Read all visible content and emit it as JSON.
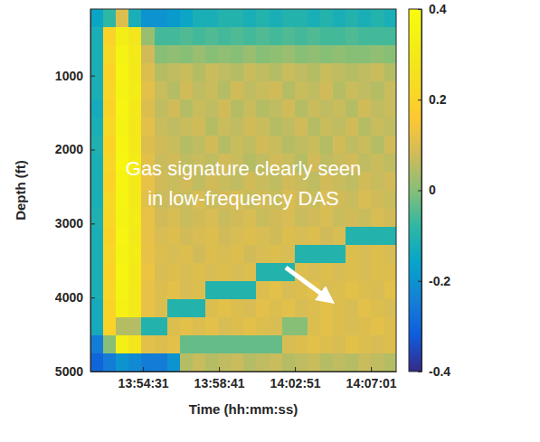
{
  "chart_data": {
    "type": "heatmap",
    "xlabel": "Time (hh:mm:ss)",
    "ylabel": "Depth (ft)",
    "annotation": [
      "Gas signature clearly seen",
      "in low-frequency DAS"
    ],
    "xlim": [
      "13:51:38",
      "14:08:24"
    ],
    "xticks": [
      "13:54:31",
      "13:58:41",
      "14:02:51",
      "14:07:01"
    ],
    "ylim": [
      100,
      5000
    ],
    "yticks": [
      1000,
      2000,
      3000,
      4000,
      5000
    ],
    "x_bins": [
      "13:51:38",
      "13:52:20",
      "13:53:02",
      "13:53:44",
      "13:54:26",
      "13:55:08",
      "13:55:50",
      "13:56:32",
      "13:57:14",
      "13:57:56",
      "13:58:38",
      "13:59:20",
      "14:00:02",
      "14:00:44",
      "14:01:26",
      "14:02:08",
      "14:02:50",
      "14:03:32",
      "14:04:14",
      "14:04:56",
      "14:05:38",
      "14:06:20",
      "14:07:02",
      "14:07:44",
      "14:08:24"
    ],
    "y_bins": [
      100,
      345,
      590,
      835,
      1080,
      1325,
      1570,
      1815,
      2060,
      2305,
      2550,
      2795,
      3040,
      3285,
      3530,
      3775,
      4020,
      4265,
      4510,
      4755,
      5000
    ],
    "values": [
      [
        -0.15,
        -0.08,
        0.1,
        -0.12,
        -0.2,
        -0.2,
        -0.18,
        -0.15,
        -0.12,
        -0.12,
        -0.1,
        -0.1,
        -0.12,
        -0.1,
        -0.12,
        -0.1,
        -0.1,
        -0.12,
        -0.1,
        -0.12,
        -0.1,
        -0.12,
        -0.1,
        -0.12
      ],
      [
        -0.12,
        0.2,
        0.32,
        0.28,
        0.02,
        -0.06,
        -0.06,
        -0.05,
        -0.06,
        -0.05,
        -0.06,
        -0.05,
        -0.06,
        -0.05,
        -0.06,
        -0.05,
        -0.06,
        -0.05,
        -0.06,
        -0.06,
        -0.05,
        -0.06,
        -0.06,
        -0.06
      ],
      [
        -0.12,
        0.22,
        0.35,
        0.3,
        0.08,
        0.0,
        0.01,
        0.0,
        0.02,
        0.0,
        0.01,
        0.0,
        0.02,
        0.0,
        0.01,
        0.02,
        0.0,
        0.01,
        0.0,
        0.01,
        0.0,
        0.0,
        0.01,
        0.0
      ],
      [
        -0.12,
        0.2,
        0.36,
        0.3,
        0.1,
        0.05,
        0.06,
        0.07,
        0.05,
        0.07,
        0.06,
        0.05,
        0.07,
        0.06,
        0.05,
        0.07,
        0.06,
        0.05,
        0.07,
        0.06,
        0.05,
        0.06,
        0.07,
        0.05
      ],
      [
        -0.12,
        0.21,
        0.35,
        0.31,
        0.11,
        0.07,
        0.05,
        0.08,
        0.06,
        0.07,
        0.05,
        0.08,
        0.06,
        0.07,
        0.08,
        0.05,
        0.07,
        0.06,
        0.08,
        0.05,
        0.07,
        0.06,
        0.05,
        0.07
      ],
      [
        -0.13,
        0.2,
        0.36,
        0.3,
        0.1,
        0.06,
        0.08,
        0.05,
        0.07,
        0.06,
        0.08,
        0.05,
        0.07,
        0.05,
        0.06,
        0.08,
        0.05,
        0.07,
        0.06,
        0.07,
        0.05,
        0.08,
        0.06,
        0.07
      ],
      [
        -0.12,
        0.22,
        0.35,
        0.29,
        0.11,
        0.07,
        0.06,
        0.07,
        0.08,
        0.05,
        0.07,
        0.06,
        0.08,
        0.07,
        0.05,
        0.06,
        0.08,
        0.05,
        0.07,
        0.06,
        0.08,
        0.05,
        0.07,
        0.06
      ],
      [
        -0.11,
        0.2,
        0.36,
        0.3,
        0.1,
        0.08,
        0.07,
        0.05,
        0.06,
        0.08,
        0.05,
        0.07,
        0.06,
        0.08,
        0.07,
        0.05,
        0.06,
        0.07,
        0.05,
        0.08,
        0.06,
        0.07,
        0.05,
        0.08
      ],
      [
        -0.12,
        0.21,
        0.37,
        0.31,
        0.11,
        0.07,
        0.08,
        0.06,
        0.07,
        0.06,
        0.08,
        0.07,
        0.05,
        0.06,
        0.08,
        0.07,
        0.05,
        0.08,
        0.06,
        0.07,
        0.08,
        0.06,
        0.07,
        0.06
      ],
      [
        -0.12,
        0.2,
        0.36,
        0.3,
        0.12,
        0.08,
        0.07,
        0.08,
        0.06,
        0.08,
        0.07,
        0.06,
        0.08,
        0.07,
        0.06,
        0.08,
        0.07,
        0.06,
        0.08,
        0.07,
        0.06,
        0.08,
        0.07,
        0.08
      ],
      [
        -0.12,
        0.22,
        0.36,
        0.3,
        0.11,
        0.07,
        0.08,
        0.07,
        0.09,
        0.07,
        0.08,
        0.09,
        0.07,
        0.08,
        0.07,
        0.09,
        0.08,
        0.07,
        0.09,
        0.08,
        0.07,
        0.09,
        0.08,
        0.07
      ],
      [
        -0.11,
        0.21,
        0.35,
        0.31,
        0.12,
        0.08,
        0.09,
        0.07,
        0.08,
        0.09,
        0.07,
        0.08,
        0.09,
        0.07,
        0.08,
        0.09,
        0.07,
        0.08,
        0.09,
        0.07,
        0.08,
        0.07,
        0.09,
        0.08
      ],
      [
        -0.12,
        0.2,
        0.36,
        0.3,
        0.12,
        0.09,
        0.1,
        0.08,
        0.09,
        0.1,
        0.08,
        0.09,
        0.1,
        0.09,
        0.08,
        0.1,
        0.09,
        0.1,
        0.08,
        0.09,
        -0.1,
        -0.1,
        -0.1,
        -0.1
      ],
      [
        -0.12,
        0.21,
        0.35,
        0.31,
        0.12,
        0.1,
        0.09,
        0.1,
        0.08,
        0.1,
        0.09,
        0.1,
        0.08,
        0.09,
        0.1,
        0.09,
        -0.1,
        -0.1,
        -0.1,
        -0.1,
        0.1,
        0.09,
        0.1,
        0.09
      ],
      [
        -0.12,
        0.2,
        0.36,
        0.3,
        0.13,
        0.09,
        0.1,
        0.09,
        0.1,
        0.09,
        0.1,
        0.09,
        0.1,
        -0.1,
        -0.1,
        -0.1,
        0.1,
        0.09,
        0.1,
        0.09,
        0.1,
        0.09,
        0.1,
        0.1
      ],
      [
        -0.12,
        0.21,
        0.35,
        0.3,
        0.12,
        0.1,
        0.11,
        0.09,
        0.1,
        -0.1,
        -0.1,
        -0.1,
        -0.1,
        0.1,
        0.11,
        0.09,
        0.1,
        0.11,
        0.09,
        0.1,
        0.11,
        0.1,
        0.09,
        0.11
      ],
      [
        -0.13,
        0.2,
        0.34,
        0.3,
        0.12,
        0.1,
        -0.1,
        -0.1,
        -0.1,
        0.1,
        0.11,
        0.1,
        0.09,
        0.11,
        0.1,
        0.11,
        0.09,
        0.1,
        0.11,
        0.1,
        0.09,
        0.11,
        0.1,
        0.09
      ],
      [
        -0.13,
        0.2,
        0.05,
        0.05,
        -0.1,
        -0.1,
        0.1,
        0.11,
        0.1,
        0.11,
        0.09,
        0.1,
        0.11,
        0.1,
        0.09,
        0.0,
        0.0,
        0.1,
        0.11,
        0.1,
        0.09,
        0.1,
        0.11,
        0.1
      ],
      [
        -0.25,
        0.0,
        0.33,
        0.28,
        0.11,
        0.1,
        0.11,
        -0.03,
        -0.03,
        -0.03,
        -0.03,
        -0.03,
        -0.03,
        -0.03,
        -0.03,
        0.09,
        0.1,
        0.11,
        0.1,
        0.09,
        0.11,
        0.1,
        0.09,
        0.1
      ],
      [
        -0.3,
        -0.25,
        -0.2,
        -0.22,
        -0.25,
        -0.25,
        -0.2,
        0.05,
        0.07,
        0.05,
        0.06,
        0.07,
        0.05,
        0.06,
        0.07,
        0.05,
        0.06,
        0.07,
        0.05,
        0.06,
        0.05,
        0.07,
        0.06,
        0.05
      ]
    ],
    "colorbar": {
      "range": [
        -0.4,
        0.4
      ],
      "ticks": [
        -0.4,
        -0.2,
        0,
        0.2,
        0.4
      ]
    }
  }
}
